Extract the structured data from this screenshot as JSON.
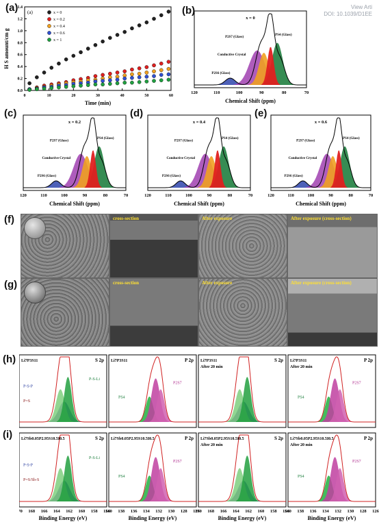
{
  "header": {
    "view_article": "View Arti",
    "doi": "DOI: 10.1039/D1EE"
  },
  "panel_labels": [
    "(a)",
    "(b)",
    "(c)",
    "(d)",
    "(e)",
    "(f)",
    "(g)",
    "(h)",
    "(i)"
  ],
  "chart_a": {
    "inner_tag": "(a)",
    "ylabel": "H S amount/cm g",
    "xlabel": "Time (min)",
    "xticks": [
      "0",
      "10",
      "20",
      "30",
      "40",
      "50",
      "60"
    ],
    "yticks": [
      "0.0",
      "0.2",
      "0.4",
      "0.6",
      "0.8",
      "1.0",
      "1.2",
      "1.4"
    ],
    "legend": [
      "x = 0",
      "x = 0.2",
      "x = 0.4",
      "x = 0.6",
      "x = 1"
    ],
    "colors": [
      "#222222",
      "#e02020",
      "#f0a020",
      "#3050d0",
      "#20a040"
    ]
  },
  "nmr_b": {
    "title": "x = 0",
    "xlabel": "Chemical Shift (ppm)",
    "xticks": [
      "120",
      "110",
      "100",
      "90",
      "80",
      "70"
    ],
    "labels": {
      "p2s7": "P2S7 (Glass)",
      "cc": "Conductive Crystal",
      "p2s6": "P2S6 (Glass)",
      "ps4": "PS4 (Glass)"
    }
  },
  "nmr_c": {
    "title": "x = 0.2",
    "xlabel": "Chemical Shift (ppm)",
    "xticks": [
      "120",
      "110",
      "100",
      "90",
      "80",
      "70"
    ]
  },
  "nmr_d": {
    "title": "x = 0.4",
    "xlabel": "Chemical Shift (ppm)",
    "xticks": [
      "120",
      "110",
      "100",
      "90",
      "80",
      "70"
    ]
  },
  "nmr_e": {
    "title": "x = 0.6",
    "xlabel": "Chemical Shift (ppm)",
    "xticks": [
      "120",
      "110",
      "100",
      "90",
      "80",
      "70"
    ]
  },
  "sem_f": [
    "",
    "cross-section",
    "After exposure",
    "After exposure (cross-section)"
  ],
  "sem_g": [
    "",
    "cross-section",
    "After exposure",
    "After exposure (cross-section)"
  ],
  "xps_h": [
    {
      "sample": "Li7P3S11",
      "core": "S 2p",
      "note": ""
    },
    {
      "sample": "Li7P3S11",
      "core": "P 2p",
      "note": ""
    },
    {
      "sample": "Li7P3S11",
      "core": "S 2p",
      "note": "After 20 min"
    },
    {
      "sample": "Li7P3S11",
      "core": "P 2p",
      "note": "After 20 min"
    }
  ],
  "xps_i": [
    {
      "sample": "Li7Sb0.05P2.95S10.5I0.5",
      "core": "S 2p",
      "note": ""
    },
    {
      "sample": "Li7Sb0.05P2.95S10.5I0.5",
      "core": "P 2p",
      "note": ""
    },
    {
      "sample": "Li7Sb0.05P2.95S10.5I0.5",
      "core": "S 2p",
      "note": "After 20 min"
    },
    {
      "sample": "Li7Sb0.05P2.95S10.5I0.5",
      "core": "P 2p",
      "note": "After 20 min"
    }
  ],
  "xps_peak_labels": {
    "psp": "P-S-P",
    "psli": "P-S-Li",
    "ps": "P=S",
    "pssbs": "P=S/Sb-S",
    "ps4": "PS4",
    "p2s7": "P2S7"
  },
  "xps_xlabel": "Binding Energy (eV)",
  "xps_xticks_s": [
    "170",
    "168",
    "166",
    "164",
    "162",
    "160",
    "158",
    "156"
  ],
  "xps_xticks_p": [
    "140",
    "138",
    "136",
    "134",
    "132",
    "130",
    "128",
    "126"
  ],
  "chart_data": {
    "type": "scatter",
    "xlabel": "Time (min)",
    "ylabel": "H S amount/cm g",
    "xlim": [
      0,
      60
    ],
    "ylim": [
      0,
      1.4
    ],
    "x": [
      2,
      5,
      8,
      11,
      14,
      17,
      20,
      23,
      26,
      29,
      32,
      35,
      38,
      41,
      44,
      47,
      50,
      53,
      56,
      59
    ],
    "series": [
      {
        "name": "x = 0",
        "values": [
          0.12,
          0.22,
          0.3,
          0.38,
          0.45,
          0.52,
          0.58,
          0.64,
          0.7,
          0.76,
          0.82,
          0.88,
          0.93,
          0.98,
          1.04,
          1.09,
          1.14,
          1.2,
          1.26,
          1.32
        ]
      },
      {
        "name": "x = 0.2",
        "values": [
          0.02,
          0.05,
          0.08,
          0.1,
          0.12,
          0.14,
          0.17,
          0.19,
          0.21,
          0.24,
          0.26,
          0.28,
          0.3,
          0.32,
          0.35,
          0.37,
          0.39,
          0.42,
          0.45,
          0.48
        ]
      },
      {
        "name": "x = 0.4",
        "values": [
          0.02,
          0.04,
          0.06,
          0.08,
          0.1,
          0.12,
          0.14,
          0.15,
          0.17,
          0.18,
          0.2,
          0.22,
          0.23,
          0.25,
          0.27,
          0.28,
          0.3,
          0.32,
          0.34,
          0.36
        ]
      },
      {
        "name": "x = 0.6",
        "values": [
          0.02,
          0.03,
          0.05,
          0.06,
          0.08,
          0.09,
          0.11,
          0.12,
          0.13,
          0.15,
          0.16,
          0.17,
          0.18,
          0.2,
          0.21,
          0.22,
          0.23,
          0.24,
          0.26,
          0.27
        ]
      },
      {
        "name": "x = 1",
        "values": [
          0.01,
          0.02,
          0.03,
          0.04,
          0.05,
          0.06,
          0.07,
          0.08,
          0.09,
          0.1,
          0.1,
          0.11,
          0.12,
          0.13,
          0.13,
          0.14,
          0.15,
          0.16,
          0.17,
          0.18
        ]
      }
    ]
  }
}
